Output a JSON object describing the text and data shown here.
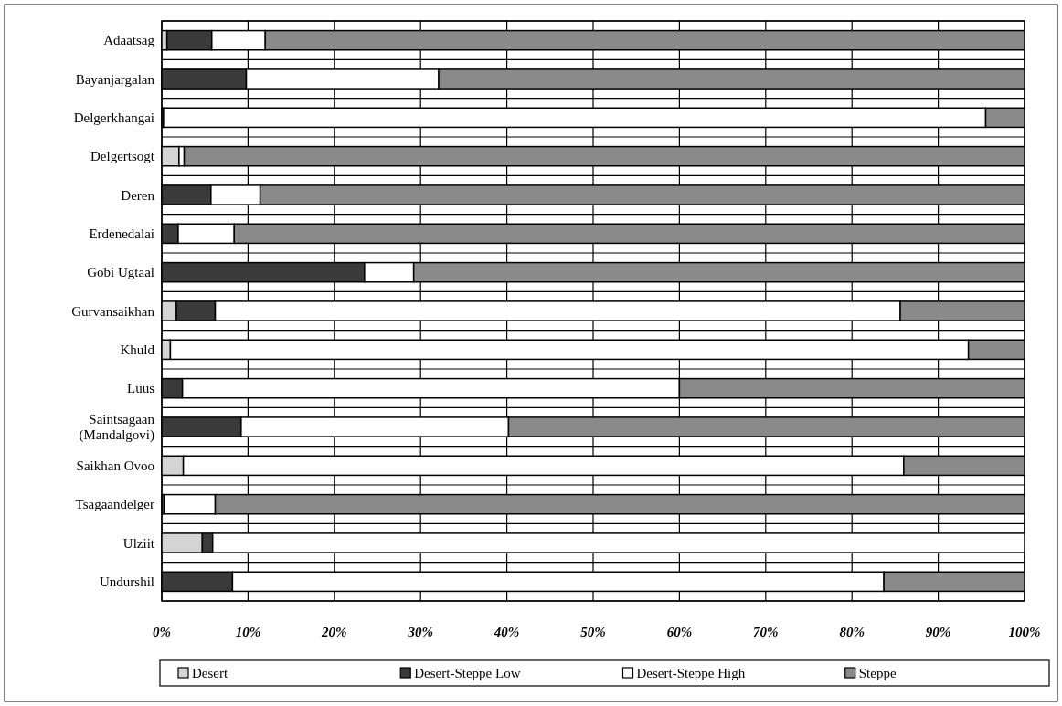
{
  "chart_data": {
    "type": "bar",
    "orientation": "horizontal",
    "stacked": true,
    "categories": [
      "Adaatsag",
      "Bayanjargalan",
      "Delgerkhangai",
      "Delgertsogt",
      "Deren",
      "Erdenedalai",
      "Gobi Ugtaal",
      "Gurvansaikhan",
      "Khuld",
      "Luus",
      "Saintsagaan (Mandalgovi)",
      "Saikhan Ovoo",
      "Tsagaandelger",
      "Ulziit",
      "Undurshil"
    ],
    "series": [
      {
        "name": "Desert",
        "color": "#d4d4d4",
        "values": [
          0.6,
          0,
          0,
          2.0,
          0,
          0,
          0,
          1.7,
          1.0,
          0,
          0,
          2.5,
          0,
          4.7,
          0
        ]
      },
      {
        "name": "Desert-Steppe Low",
        "color": "#3a3a3a",
        "values": [
          5.2,
          9.8,
          0.2,
          0,
          5.7,
          1.9,
          23.5,
          4.5,
          0,
          2.4,
          9.2,
          0,
          0.3,
          1.2,
          8.2
        ]
      },
      {
        "name": "Desert-Steppe High",
        "color": "#ffffff",
        "values": [
          6.2,
          22.3,
          95.3,
          0.6,
          5.7,
          6.5,
          5.7,
          79.4,
          92.5,
          57.6,
          31.0,
          83.5,
          5.9,
          94.1,
          75.5
        ]
      },
      {
        "name": "Steppe",
        "color": "#8a8a8a",
        "values": [
          88.0,
          67.9,
          4.5,
          97.4,
          88.6,
          91.6,
          70.8,
          14.4,
          6.5,
          40.0,
          59.8,
          14.0,
          93.8,
          0,
          16.3
        ]
      }
    ],
    "xlim": [
      0,
      100
    ],
    "xticks": [
      {
        "value": 0,
        "label": "0%"
      },
      {
        "value": 10,
        "label": "10%"
      },
      {
        "value": 20,
        "label": "20%"
      },
      {
        "value": 30,
        "label": "30%"
      },
      {
        "value": 40,
        "label": "40%"
      },
      {
        "value": 50,
        "label": "50%"
      },
      {
        "value": 60,
        "label": "60%"
      },
      {
        "value": 70,
        "label": "70%"
      },
      {
        "value": 80,
        "label": "80%"
      },
      {
        "value": 90,
        "label": "90%"
      },
      {
        "value": 100,
        "label": "100%"
      }
    ],
    "grid": true,
    "legend": "bottom"
  }
}
